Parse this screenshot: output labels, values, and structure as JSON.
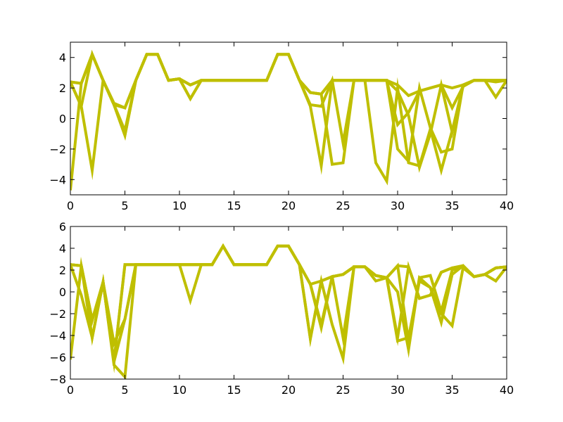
{
  "chart_data": [
    {
      "type": "line",
      "title": "",
      "xlabel": "",
      "ylabel": "",
      "xlim": [
        0,
        40
      ],
      "ylim": [
        -5,
        5
      ],
      "xticks": [
        0,
        5,
        10,
        15,
        20,
        25,
        30,
        35,
        40
      ],
      "yticks": [
        -4,
        -2,
        0,
        2,
        4
      ],
      "grid": false,
      "line_color": "#bfbf00",
      "x": [
        0,
        1,
        2,
        3,
        4,
        5,
        6,
        7,
        8,
        9,
        10,
        11,
        12,
        13,
        14,
        15,
        16,
        17,
        18,
        19,
        20,
        21,
        22,
        23,
        24,
        25,
        26,
        27,
        28,
        29,
        30,
        31,
        32,
        33,
        34,
        35,
        36,
        37,
        38,
        39,
        40
      ],
      "series": [
        {
          "values": [
            2.4,
            2.3,
            4.2,
            2.5,
            1.0,
            0.7,
            2.5,
            4.2,
            4.2,
            2.5,
            2.6,
            2.2,
            2.5,
            2.5,
            2.5,
            2.5,
            2.5,
            2.5,
            2.5,
            4.2,
            4.2,
            2.5,
            1.7,
            1.6,
            2.5,
            2.5,
            2.5,
            2.5,
            2.5,
            2.5,
            2.2,
            1.5,
            1.8,
            2.0,
            2.2,
            2.0,
            2.2,
            2.5,
            2.5,
            2.4,
            2.5
          ]
        },
        {
          "values": [
            2.4,
            0.8,
            -3.4,
            2.5,
            0.9,
            -0.8,
            2.5,
            4.2,
            4.2,
            2.5,
            2.6,
            1.3,
            2.5,
            2.5,
            2.5,
            2.5,
            2.5,
            2.5,
            2.5,
            4.2,
            4.2,
            2.5,
            0.9,
            0.8,
            2.5,
            -1.6,
            2.5,
            2.5,
            2.5,
            2.5,
            -0.4,
            0.4,
            1.8,
            2.0,
            2.2,
            0.7,
            2.1,
            2.5,
            2.5,
            1.4,
            2.5
          ]
        },
        {
          "values": [
            2.4,
            0.8,
            4.2,
            2.5,
            0.9,
            -1.1,
            2.5,
            4.2,
            4.2,
            2.5,
            2.6,
            1.3,
            2.5,
            2.5,
            2.5,
            2.5,
            2.5,
            2.5,
            2.5,
            4.2,
            4.2,
            2.5,
            0.8,
            -3.1,
            2.5,
            2.5,
            2.5,
            2.5,
            -2.9,
            -4.1,
            2.0,
            -2.9,
            -3.1,
            -0.7,
            -3.4,
            -0.8,
            2.1,
            2.5,
            2.5,
            2.5,
            2.5
          ]
        },
        {
          "values": [
            -4.7,
            2.3,
            4.2,
            2.5,
            0.9,
            -1.1,
            2.5,
            4.2,
            4.2,
            2.5,
            2.6,
            2.2,
            2.5,
            2.5,
            2.5,
            2.5,
            2.5,
            2.5,
            2.5,
            4.2,
            4.2,
            2.5,
            1.7,
            1.6,
            -3.0,
            -2.9,
            2.5,
            2.5,
            2.5,
            2.5,
            -2.0,
            -2.8,
            2.0,
            -0.6,
            -2.2,
            -2.0,
            2.2,
            2.5,
            2.5,
            2.5,
            2.5
          ]
        },
        {
          "values": [
            2.4,
            2.3,
            4.2,
            2.5,
            0.9,
            0.7,
            2.5,
            4.2,
            4.2,
            2.5,
            2.6,
            2.2,
            2.5,
            2.5,
            2.5,
            2.5,
            2.5,
            2.5,
            2.5,
            4.2,
            4.2,
            2.5,
            1.7,
            1.6,
            2.5,
            2.5,
            2.5,
            2.5,
            2.5,
            2.5,
            1.8,
            0.2,
            -3.2,
            -1.0,
            2.2,
            -0.9,
            2.2,
            2.5,
            2.5,
            2.5,
            2.5
          ]
        }
      ]
    },
    {
      "type": "line",
      "title": "",
      "xlabel": "",
      "ylabel": "",
      "xlim": [
        0,
        40
      ],
      "ylim": [
        -8,
        6
      ],
      "xticks": [
        0,
        5,
        10,
        15,
        20,
        25,
        30,
        35,
        40
      ],
      "yticks": [
        -8,
        -6,
        -4,
        -2,
        0,
        2,
        4,
        6
      ],
      "grid": false,
      "line_color": "#bfbf00",
      "x": [
        0,
        1,
        2,
        3,
        4,
        5,
        6,
        7,
        8,
        9,
        10,
        11,
        12,
        13,
        14,
        15,
        16,
        17,
        18,
        19,
        20,
        21,
        22,
        23,
        24,
        25,
        26,
        27,
        28,
        29,
        30,
        31,
        32,
        33,
        34,
        35,
        36,
        37,
        38,
        39,
        40
      ],
      "series": [
        {
          "values": [
            2.5,
            2.4,
            -2.6,
            0.9,
            -6.4,
            2.5,
            2.5,
            2.5,
            2.5,
            2.5,
            2.5,
            2.5,
            2.5,
            2.5,
            4.2,
            2.5,
            2.5,
            2.5,
            2.5,
            4.2,
            4.2,
            2.5,
            0.7,
            1.0,
            1.4,
            1.6,
            2.3,
            2.3,
            1.5,
            1.3,
            2.4,
            2.3,
            -0.6,
            -0.3,
            1.8,
            2.2,
            2.4,
            1.4,
            1.6,
            2.2,
            2.3
          ]
        },
        {
          "values": [
            2.5,
            -0.3,
            -4.2,
            0.9,
            -6.7,
            -7.8,
            2.5,
            2.5,
            2.5,
            2.5,
            2.5,
            -0.8,
            2.5,
            2.5,
            4.2,
            2.5,
            2.5,
            2.5,
            2.5,
            4.2,
            4.2,
            2.5,
            -4.3,
            1.0,
            1.4,
            -4.2,
            2.3,
            2.3,
            1.0,
            1.3,
            -4.5,
            -4.2,
            1.0,
            0.4,
            -2.8,
            1.6,
            2.4,
            1.4,
            1.6,
            2.2,
            2.3
          ]
        },
        {
          "values": [
            -6.2,
            2.4,
            -2.6,
            0.9,
            -6.4,
            -2.5,
            2.5,
            2.5,
            2.5,
            2.5,
            2.5,
            2.5,
            2.5,
            2.5,
            4.2,
            2.5,
            2.5,
            2.5,
            2.5,
            4.2,
            4.2,
            2.5,
            0.7,
            -3.3,
            1.4,
            1.6,
            2.3,
            2.3,
            1.5,
            1.3,
            0.0,
            -5.3,
            1.3,
            0.4,
            -2.0,
            -3.1,
            2.2,
            1.4,
            1.6,
            1.0,
            2.3
          ]
        },
        {
          "values": [
            2.5,
            2.4,
            -4.2,
            0.9,
            -4.7,
            -2.5,
            2.5,
            2.5,
            2.5,
            2.5,
            2.5,
            2.5,
            2.5,
            2.5,
            4.2,
            2.5,
            2.5,
            2.5,
            2.5,
            4.2,
            4.2,
            2.5,
            -4.3,
            1.0,
            -3.0,
            -6.1,
            2.3,
            2.3,
            1.5,
            1.3,
            2.4,
            -4.5,
            1.3,
            1.5,
            -1.8,
            2.0,
            2.3,
            1.4,
            1.6,
            2.2,
            2.3
          ]
        },
        {
          "values": [
            2.5,
            2.4,
            -2.6,
            0.9,
            -6.4,
            2.5,
            2.5,
            2.5,
            2.5,
            2.5,
            2.5,
            2.5,
            2.5,
            2.5,
            4.2,
            2.5,
            2.5,
            2.5,
            2.5,
            4.2,
            4.2,
            2.5,
            0.7,
            -3.0,
            1.4,
            1.6,
            2.3,
            2.3,
            1.5,
            1.3,
            -4.2,
            2.3,
            -0.6,
            -0.3,
            1.8,
            2.2,
            2.4,
            1.4,
            1.6,
            2.2,
            2.3
          ]
        }
      ]
    }
  ]
}
